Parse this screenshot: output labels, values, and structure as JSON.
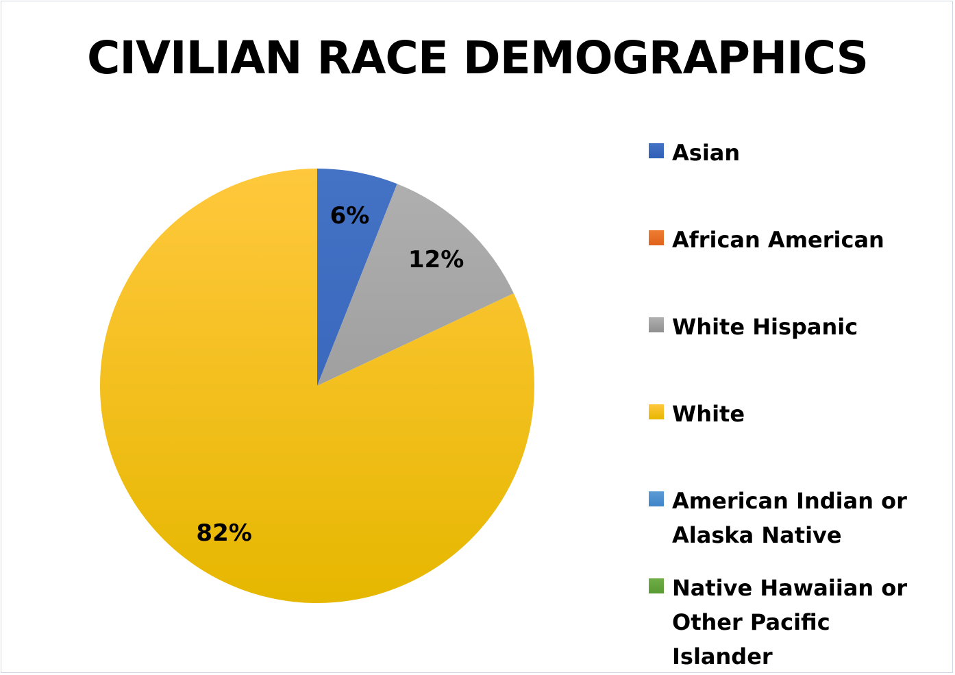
{
  "chart_data": {
    "type": "pie",
    "title": "CIVILIAN RACE DEMOGRAPHICS",
    "legend_position": "right",
    "slices": [
      {
        "label": "Asian",
        "value": 6,
        "data_label": "6%",
        "color": "#4472c4",
        "color_dark": "#2f5fb7"
      },
      {
        "label": "African American",
        "value": 0,
        "data_label": "",
        "color": "#ed7d31",
        "color_dark": "#e0621a"
      },
      {
        "label": "White Hispanic",
        "value": 12,
        "data_label": "12%",
        "color": "#b0b0b0",
        "color_dark": "#8f8f8f"
      },
      {
        "label": "White",
        "value": 82,
        "data_label": "82%",
        "color": "#ffc83d",
        "color_dark": "#e6b700"
      },
      {
        "label": "American Indian or Alaska Native",
        "value": 0,
        "data_label": "",
        "color": "#5b9bd5",
        "color_dark": "#3f85c8"
      },
      {
        "label": "Native Hawaiian or Other Pacific Islander",
        "value": 0,
        "data_label": "",
        "color": "#70ad47",
        "color_dark": "#5a9a32"
      }
    ]
  }
}
